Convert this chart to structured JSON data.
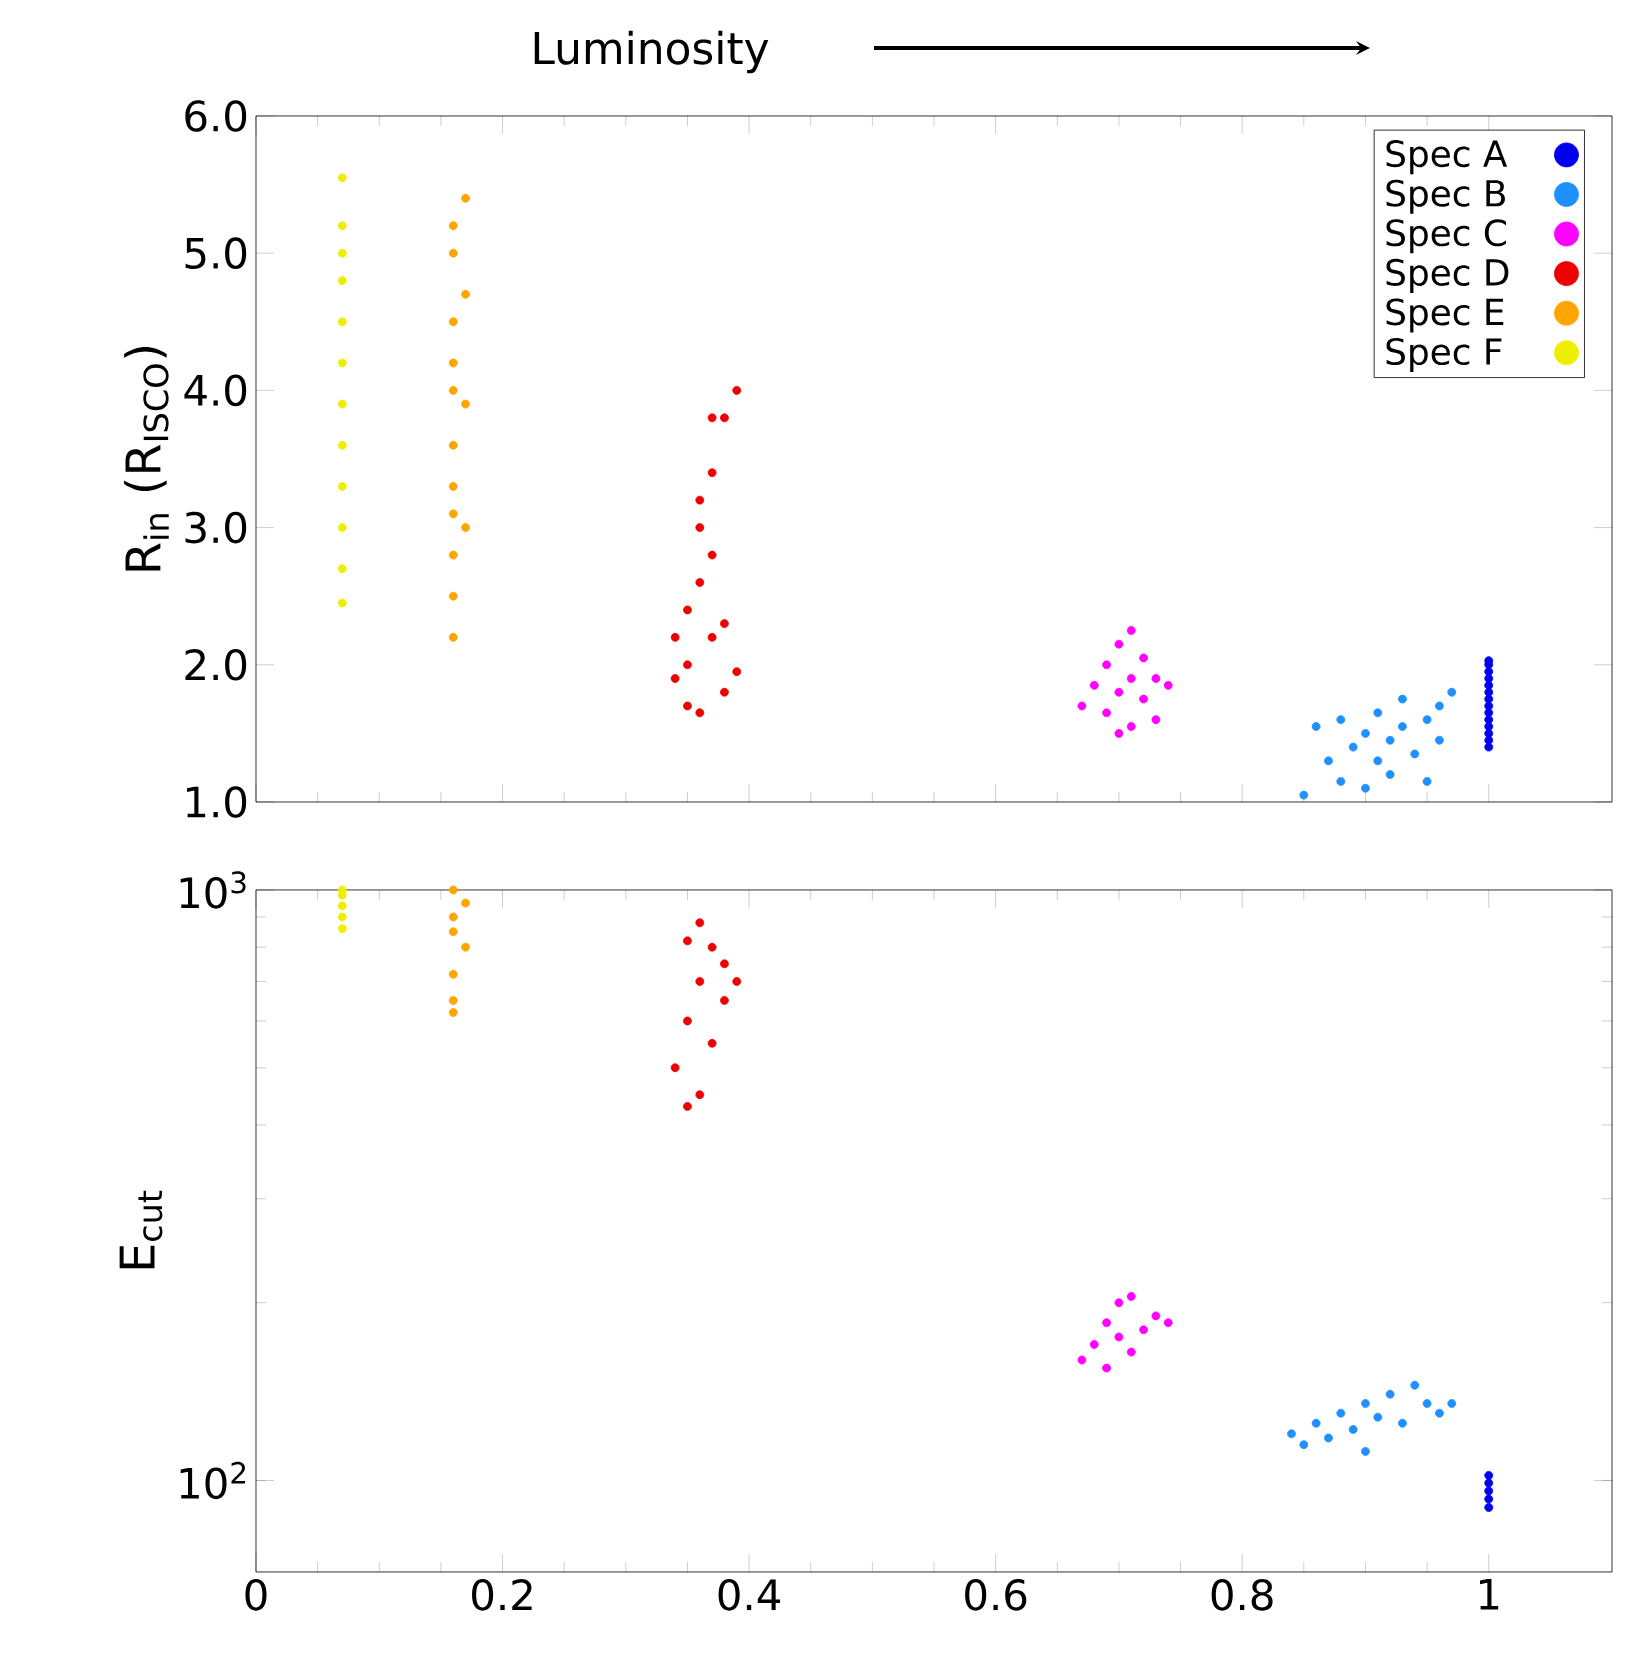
{
  "chart_data": [
    {
      "type": "scatter",
      "annotations": [
        "Luminosity"
      ],
      "ylabel": "R$_{in}$ (R$_{ISCO}$)",
      "xlim": [
        0,
        1.1
      ],
      "xticks": [
        0,
        0.2,
        0.4,
        0.6,
        0.8,
        1
      ],
      "tick_labels": "y",
      "ylim": [
        1,
        6
      ],
      "yticks": [
        {
          "value": 1,
          "label": "1.0"
        },
        {
          "value": 2,
          "label": "2.0"
        },
        {
          "value": 3,
          "label": "3.0"
        },
        {
          "value": 4,
          "label": "4.0"
        },
        {
          "value": 5,
          "label": "5.0"
        },
        {
          "value": 6,
          "label": "6.0"
        }
      ],
      "legend": "top right",
      "marker": "circle",
      "series": [
        {
          "name": "Spec A",
          "color": "#0000ee",
          "x": [
            1,
            1,
            1,
            1,
            1,
            1,
            1,
            1,
            1,
            1,
            1,
            1,
            1,
            1
          ],
          "values": [
            1.4,
            1.45,
            1.5,
            1.55,
            1.6,
            1.65,
            1.7,
            1.75,
            1.8,
            1.85,
            1.9,
            1.95,
            2.0,
            2.03
          ]
        },
        {
          "name": "Spec B",
          "color": "#1e90ff",
          "x": [
            0.85,
            0.86,
            0.87,
            0.88,
            0.88,
            0.89,
            0.9,
            0.9,
            0.91,
            0.91,
            0.92,
            0.92,
            0.93,
            0.93,
            0.94,
            0.95,
            0.95,
            0.96,
            0.96,
            0.97
          ],
          "values": [
            1.05,
            1.55,
            1.3,
            1.6,
            1.15,
            1.4,
            1.1,
            1.5,
            1.3,
            1.65,
            1.45,
            1.2,
            1.55,
            1.75,
            1.35,
            1.6,
            1.15,
            1.7,
            1.45,
            1.8
          ]
        },
        {
          "name": "Spec C",
          "color": "#ff00ff",
          "x": [
            0.67,
            0.68,
            0.69,
            0.69,
            0.7,
            0.7,
            0.71,
            0.71,
            0.71,
            0.72,
            0.72,
            0.73,
            0.73,
            0.74,
            0.7
          ],
          "values": [
            1.7,
            1.85,
            2.0,
            1.65,
            1.8,
            2.15,
            1.55,
            1.9,
            2.25,
            1.75,
            2.05,
            1.6,
            1.9,
            1.85,
            1.5
          ]
        },
        {
          "name": "Spec D",
          "color": "#ee0000",
          "x": [
            0.34,
            0.34,
            0.35,
            0.35,
            0.35,
            0.36,
            0.36,
            0.36,
            0.37,
            0.37,
            0.37,
            0.38,
            0.38,
            0.38,
            0.39,
            0.39,
            0.36,
            0.37
          ],
          "values": [
            1.9,
            2.2,
            1.7,
            2.4,
            2.0,
            1.65,
            2.6,
            3.0,
            2.2,
            3.4,
            3.8,
            1.8,
            3.8,
            2.3,
            4.0,
            1.95,
            3.2,
            2.8
          ]
        },
        {
          "name": "Spec E",
          "color": "#ffa500",
          "x": [
            0.16,
            0.16,
            0.16,
            0.17,
            0.16,
            0.16,
            0.17,
            0.16,
            0.16,
            0.17,
            0.16,
            0.16,
            0.17,
            0.16,
            0.16
          ],
          "values": [
            2.2,
            2.5,
            2.8,
            3.0,
            3.3,
            3.6,
            3.9,
            4.2,
            4.5,
            4.7,
            5.0,
            5.2,
            5.4,
            4.0,
            3.1
          ]
        },
        {
          "name": "Spec F",
          "color": "#eeee00",
          "x": [
            0.07,
            0.07,
            0.07,
            0.07,
            0.07,
            0.07,
            0.07,
            0.07,
            0.07,
            0.07,
            0.07,
            0.07
          ],
          "values": [
            2.45,
            2.7,
            3.0,
            3.3,
            3.6,
            3.9,
            4.2,
            4.5,
            4.8,
            5.0,
            5.2,
            5.55
          ]
        }
      ]
    },
    {
      "type": "scatter",
      "ylabel": "E$_{cut}$",
      "log": "y",
      "xlim": [
        0,
        1.1
      ],
      "xticks": [
        0,
        0.2,
        0.4,
        0.6,
        0.8,
        1
      ],
      "ylim": [
        70,
        1000
      ],
      "yticks": [
        {
          "value": 100,
          "label": "10$^{2}$"
        },
        {
          "value": 1000,
          "label": "10$^{3}$"
        }
      ],
      "marker": "circle",
      "series": [
        {
          "color": "#0000ee",
          "x": [
            1,
            1,
            1,
            1,
            1
          ],
          "values": [
            90,
            93,
            96,
            99,
            102
          ]
        },
        {
          "color": "#1e90ff",
          "x": [
            0.84,
            0.85,
            0.86,
            0.87,
            0.88,
            0.89,
            0.9,
            0.9,
            0.91,
            0.92,
            0.93,
            0.94,
            0.95,
            0.96,
            0.97
          ],
          "values": [
            120,
            115,
            125,
            118,
            130,
            122,
            135,
            112,
            128,
            140,
            125,
            145,
            135,
            130,
            135
          ]
        },
        {
          "color": "#ff00ff",
          "x": [
            0.67,
            0.68,
            0.69,
            0.69,
            0.7,
            0.7,
            0.71,
            0.71,
            0.72,
            0.73,
            0.74
          ],
          "values": [
            160,
            170,
            155,
            185,
            175,
            200,
            165,
            205,
            180,
            190,
            185
          ]
        },
        {
          "color": "#ee0000",
          "x": [
            0.34,
            0.35,
            0.35,
            0.36,
            0.36,
            0.36,
            0.37,
            0.37,
            0.38,
            0.38,
            0.39,
            0.35
          ],
          "values": [
            500,
            430,
            600,
            450,
            700,
            880,
            550,
            800,
            650,
            750,
            700,
            820
          ]
        },
        {
          "color": "#ffa500",
          "x": [
            0.16,
            0.16,
            0.16,
            0.17,
            0.16,
            0.16,
            0.17,
            0.16
          ],
          "values": [
            620,
            650,
            720,
            800,
            850,
            900,
            950,
            1000
          ]
        },
        {
          "color": "#eeee00",
          "x": [
            0.07,
            0.07,
            0.07,
            0.07,
            0.07
          ],
          "values": [
            860,
            900,
            940,
            980,
            1000
          ]
        }
      ]
    }
  ]
}
